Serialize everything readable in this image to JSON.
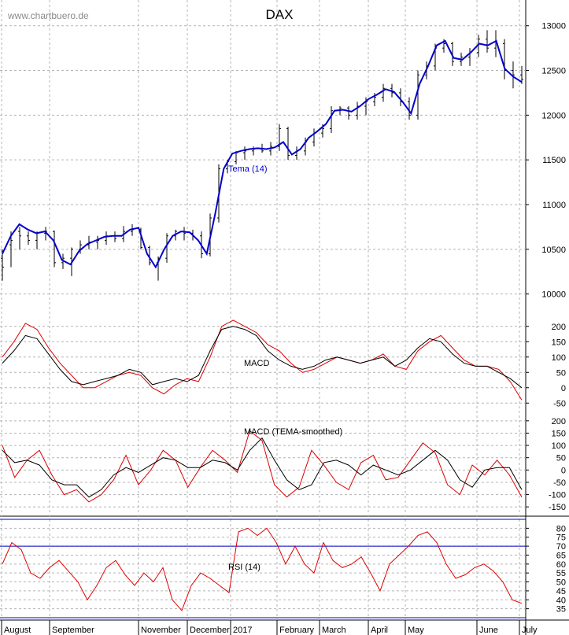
{
  "colors": {
    "price_bars": "#000000",
    "tema_line": "#0000cc",
    "macd_signal": "#000000",
    "macd_fast": "#dd0000",
    "rsi_line": "#dd0000",
    "rsi_bands": "#0000cc",
    "grid": "#b4b4b4",
    "watermark": "#8a8a8a"
  },
  "chart_data": [
    {
      "type": "line",
      "title": "DAX",
      "watermark": "www.chartbuero.de",
      "series_label": "Tema (14)",
      "ylim": [
        9900,
        13200
      ],
      "yticks": [
        10000,
        10500,
        11000,
        11500,
        12000,
        12500,
        13000
      ],
      "x_months": [
        "August",
        "September",
        "November",
        "December",
        "2017",
        "February",
        "March",
        "April",
        "May",
        "June",
        "July"
      ],
      "price": [
        [
          10400,
          10150,
          10500,
          10300
        ],
        [
          10550,
          10300,
          10700,
          10600
        ],
        [
          10700,
          10500,
          10750,
          10650
        ],
        [
          10650,
          10550,
          10700,
          10600
        ],
        [
          10600,
          10500,
          10700,
          10680
        ],
        [
          10680,
          10600,
          10750,
          10700
        ],
        [
          10700,
          10300,
          10710,
          10350
        ],
        [
          10350,
          10280,
          10450,
          10400
        ],
        [
          10400,
          10200,
          10520,
          10500
        ],
        [
          10500,
          10450,
          10600,
          10550
        ],
        [
          10550,
          10500,
          10650,
          10580
        ],
        [
          10580,
          10500,
          10650,
          10600
        ],
        [
          10600,
          10550,
          10700,
          10650
        ],
        [
          10650,
          10580,
          10700,
          10620
        ],
        [
          10620,
          10580,
          10760,
          10700
        ],
        [
          10700,
          10650,
          10780,
          10720
        ],
        [
          10720,
          10500,
          10740,
          10520
        ],
        [
          10520,
          10320,
          10540,
          10350
        ],
        [
          10350,
          10150,
          10420,
          10400
        ],
        [
          10400,
          10350,
          10680,
          10650
        ],
        [
          10650,
          10600,
          10720,
          10700
        ],
        [
          10700,
          10600,
          10750,
          10680
        ],
        [
          10680,
          10600,
          10720,
          10650
        ],
        [
          10650,
          10400,
          10700,
          10450
        ],
        [
          10450,
          10420,
          10900,
          10850
        ],
        [
          10850,
          10800,
          11450,
          11400
        ],
        [
          11400,
          11350,
          11500,
          11480
        ],
        [
          11480,
          11450,
          11600,
          11580
        ],
        [
          11580,
          11500,
          11650,
          11600
        ],
        [
          11600,
          11550,
          11650,
          11620
        ],
        [
          11620,
          11580,
          11680,
          11600
        ],
        [
          11600,
          11550,
          11700,
          11650
        ],
        [
          11650,
          11600,
          11900,
          11850
        ],
        [
          11850,
          11500,
          11870,
          11550
        ],
        [
          11550,
          11500,
          11650,
          11600
        ],
        [
          11600,
          11550,
          11750,
          11700
        ],
        [
          11700,
          11650,
          11850,
          11800
        ],
        [
          11800,
          11750,
          11900,
          11850
        ],
        [
          11850,
          11800,
          12100,
          12050
        ],
        [
          12050,
          12000,
          12100,
          12080
        ],
        [
          12080,
          11950,
          12100,
          12000
        ],
        [
          12000,
          11950,
          12150,
          12100
        ],
        [
          12100,
          12000,
          12200,
          12150
        ],
        [
          12150,
          12100,
          12250,
          12200
        ],
        [
          12200,
          12150,
          12350,
          12300
        ],
        [
          12300,
          12200,
          12350,
          12250
        ],
        [
          12250,
          12100,
          12300,
          12150
        ],
        [
          12150,
          11950,
          12200,
          12000
        ],
        [
          12000,
          11950,
          12500,
          12450
        ],
        [
          12450,
          12400,
          12600,
          12550
        ],
        [
          12550,
          12500,
          12800,
          12750
        ],
        [
          12750,
          12700,
          12850,
          12800
        ],
        [
          12800,
          12550,
          12820,
          12600
        ],
        [
          12600,
          12550,
          12700,
          12650
        ],
        [
          12650,
          12550,
          12750,
          12700
        ],
        [
          12700,
          12650,
          12900,
          12850
        ],
        [
          12850,
          12700,
          12950,
          12750
        ],
        [
          12750,
          12650,
          12950,
          12800
        ],
        [
          12800,
          12400,
          12850,
          12500
        ],
        [
          12500,
          12300,
          12600,
          12450
        ],
        [
          12450,
          12350,
          12550,
          12400
        ]
      ],
      "tema": [
        10450,
        10650,
        10780,
        10720,
        10680,
        10700,
        10600,
        10380,
        10330,
        10480,
        10560,
        10600,
        10640,
        10650,
        10650,
        10720,
        10740,
        10450,
        10300,
        10500,
        10650,
        10700,
        10690,
        10600,
        10450,
        10900,
        11400,
        11570,
        11600,
        11620,
        11630,
        11620,
        11640,
        11700,
        11560,
        11620,
        11750,
        11820,
        11900,
        12050,
        12060,
        12040,
        12100,
        12180,
        12230,
        12290,
        12260,
        12150,
        12020,
        12350,
        12550,
        12780,
        12830,
        12640,
        12620,
        12700,
        12800,
        12780,
        12830,
        12520,
        12430,
        12370
      ]
    },
    {
      "type": "line",
      "label": "MACD",
      "ylim": [
        -75,
        225
      ],
      "yticks": [
        -50,
        0,
        50,
        100,
        150,
        200
      ],
      "fast": [
        100,
        150,
        210,
        190,
        130,
        80,
        40,
        0,
        0,
        20,
        40,
        50,
        40,
        0,
        -20,
        10,
        30,
        20,
        100,
        200,
        220,
        200,
        180,
        140,
        120,
        80,
        50,
        60,
        80,
        100,
        90,
        80,
        90,
        110,
        70,
        60,
        120,
        150,
        170,
        130,
        90,
        70,
        70,
        60,
        20,
        -40
      ],
      "signal": [
        80,
        120,
        170,
        160,
        110,
        60,
        20,
        10,
        20,
        30,
        40,
        60,
        50,
        10,
        20,
        30,
        20,
        40,
        120,
        190,
        200,
        190,
        170,
        120,
        90,
        70,
        60,
        70,
        90,
        100,
        90,
        80,
        90,
        100,
        70,
        90,
        130,
        160,
        150,
        110,
        80,
        70,
        70,
        50,
        30,
        0
      ]
    },
    {
      "type": "line",
      "label": "MACD (TEMA-smoothed)",
      "ylim": [
        -175,
        225
      ],
      "yticks": [
        -150,
        -100,
        -50,
        0,
        50,
        100,
        150,
        200
      ],
      "fast": [
        100,
        -30,
        40,
        80,
        -20,
        -100,
        -80,
        -130,
        -100,
        -40,
        60,
        -60,
        0,
        80,
        40,
        -70,
        10,
        80,
        40,
        -10,
        160,
        120,
        -60,
        -110,
        -70,
        80,
        20,
        -50,
        -80,
        30,
        60,
        -40,
        -30,
        40,
        110,
        70,
        -60,
        -100,
        20,
        -20,
        40,
        -20,
        -110
      ],
      "signal": [
        80,
        30,
        40,
        20,
        -40,
        -60,
        -60,
        -110,
        -80,
        -20,
        10,
        -10,
        20,
        50,
        40,
        10,
        10,
        40,
        30,
        0,
        80,
        130,
        40,
        -40,
        -80,
        -60,
        30,
        40,
        20,
        -20,
        20,
        0,
        -20,
        0,
        40,
        80,
        40,
        -40,
        -70,
        0,
        10,
        10,
        -80
      ]
    },
    {
      "type": "line",
      "label": "RSI (14)",
      "ylim": [
        30,
        85
      ],
      "yticks": [
        35,
        40,
        45,
        50,
        55,
        60,
        65,
        70,
        75,
        80
      ],
      "bands": [
        70,
        85,
        30
      ],
      "values": [
        60,
        72,
        68,
        55,
        52,
        58,
        62,
        56,
        50,
        40,
        48,
        58,
        62,
        54,
        48,
        55,
        50,
        58,
        40,
        34,
        48,
        55,
        52,
        48,
        44,
        78,
        80,
        76,
        80,
        72,
        60,
        70,
        60,
        55,
        72,
        62,
        58,
        60,
        64,
        55,
        45,
        60,
        65,
        70,
        76,
        78,
        72,
        60,
        52,
        54,
        58,
        60,
        56,
        50,
        40,
        38
      ]
    }
  ]
}
